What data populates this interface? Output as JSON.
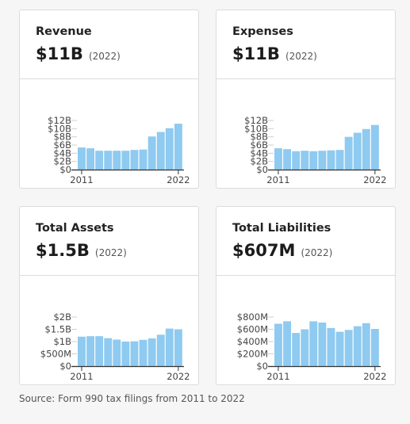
{
  "cards": [
    {
      "title": "Revenue",
      "value": "$11B",
      "year": "(2022)",
      "chart_data": {
        "type": "bar",
        "categories": [
          "2011",
          "2012",
          "2013",
          "2014",
          "2015",
          "2016",
          "2017",
          "2018",
          "2019",
          "2020",
          "2021",
          "2022"
        ],
        "values": [
          5.4,
          5.2,
          4.6,
          4.6,
          4.6,
          4.6,
          4.8,
          4.9,
          8.1,
          9.2,
          10.1,
          11.2
        ],
        "unit": "B",
        "ylim": [
          0,
          12
        ],
        "yticks": [
          "$12B",
          "$10B",
          "$8B",
          "$6B",
          "$4B",
          "$2B",
          "$0"
        ],
        "ytick_values": [
          12,
          10,
          8,
          6,
          4,
          2,
          0
        ],
        "xtick_first": "2011",
        "xtick_last": "2022",
        "color": "#8fcaf0"
      }
    },
    {
      "title": "Expenses",
      "value": "$11B",
      "year": "(2022)",
      "chart_data": {
        "type": "bar",
        "categories": [
          "2011",
          "2012",
          "2013",
          "2014",
          "2015",
          "2016",
          "2017",
          "2018",
          "2019",
          "2020",
          "2021",
          "2022"
        ],
        "values": [
          5.2,
          5.0,
          4.5,
          4.6,
          4.5,
          4.6,
          4.7,
          4.8,
          8.0,
          9.0,
          9.9,
          10.9
        ],
        "unit": "B",
        "ylim": [
          0,
          12
        ],
        "yticks": [
          "$12B",
          "$10B",
          "$8B",
          "$6B",
          "$4B",
          "$2B",
          "$0"
        ],
        "ytick_values": [
          12,
          10,
          8,
          6,
          4,
          2,
          0
        ],
        "xtick_first": "2011",
        "xtick_last": "2022",
        "color": "#8fcaf0"
      }
    },
    {
      "title": "Total Assets",
      "value": "$1.5B",
      "year": "(2022)",
      "chart_data": {
        "type": "bar",
        "categories": [
          "2011",
          "2012",
          "2013",
          "2014",
          "2015",
          "2016",
          "2017",
          "2018",
          "2019",
          "2020",
          "2021",
          "2022"
        ],
        "values": [
          1.2,
          1.22,
          1.22,
          1.14,
          1.08,
          1.0,
          1.01,
          1.07,
          1.13,
          1.28,
          1.53,
          1.5
        ],
        "unit": "B",
        "ylim": [
          0,
          2
        ],
        "yticks": [
          "$2B",
          "$1.5B",
          "$1B",
          "$500M",
          "$0"
        ],
        "ytick_values": [
          2,
          1.5,
          1,
          0.5,
          0
        ],
        "xtick_first": "2011",
        "xtick_last": "2022",
        "color": "#8fcaf0"
      }
    },
    {
      "title": "Total Liabilities",
      "value": "$607M",
      "year": "(2022)",
      "chart_data": {
        "type": "bar",
        "categories": [
          "2011",
          "2012",
          "2013",
          "2014",
          "2015",
          "2016",
          "2017",
          "2018",
          "2019",
          "2020",
          "2021",
          "2022"
        ],
        "values": [
          690,
          730,
          540,
          600,
          730,
          710,
          620,
          560,
          590,
          650,
          700,
          607
        ],
        "unit": "M",
        "ylim": [
          0,
          800
        ],
        "yticks": [
          "$800M",
          "$600M",
          "$400M",
          "$200M",
          "$0"
        ],
        "ytick_values": [
          800,
          600,
          400,
          200,
          0
        ],
        "xtick_first": "2011",
        "xtick_last": "2022",
        "color": "#8fcaf0"
      }
    }
  ],
  "source": "Source: Form 990 tax filings from 2011 to 2022"
}
